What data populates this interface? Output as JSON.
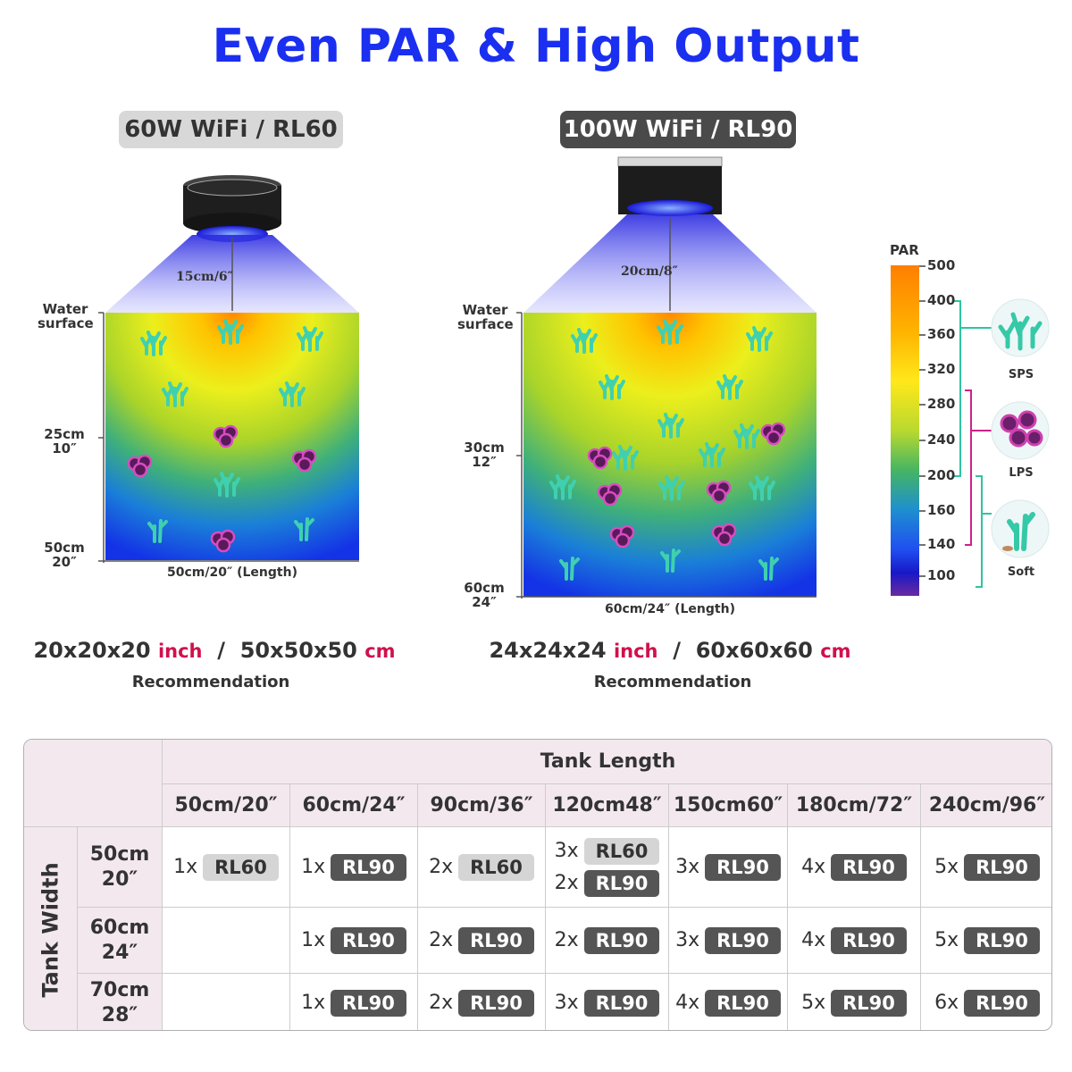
{
  "title": "Even PAR & High Output",
  "left_panel": {
    "model": "60W WiFi / RL60",
    "distance": "15cm/6″",
    "water_surface": [
      "Water",
      "surface"
    ],
    "depth_mid": [
      "25cm",
      "10″"
    ],
    "depth_bottom": [
      "50cm",
      "20″"
    ],
    "length": "50cm/20″  (Length)",
    "size_inch": "20x20x20",
    "size_cm": "50x50x50",
    "unit_inch": "inch",
    "unit_cm": "cm",
    "recommendation": "Recommendation"
  },
  "right_panel": {
    "model": "100W WiFi / RL90",
    "distance": "20cm/8″",
    "water_surface": [
      "Water",
      "surface"
    ],
    "depth_mid": [
      "30cm",
      "12″"
    ],
    "depth_bottom": [
      "60cm",
      "24″"
    ],
    "length": "60cm/24″  (Length)",
    "size_inch": "24x24x24",
    "size_cm": "60x60x60",
    "unit_inch": "inch",
    "unit_cm": "cm",
    "recommendation": "Recommendation"
  },
  "par_scale": {
    "label": "PAR",
    "ticks": [
      "500",
      "400",
      "360",
      "320",
      "280",
      "240",
      "200",
      "160",
      "140",
      "100"
    ],
    "corals": [
      "SPS",
      "LPS",
      "Soft"
    ]
  },
  "table": {
    "header": "Tank Length",
    "row_header": "Tank Width",
    "lengths": [
      "50cm/20″",
      "60cm/24″",
      "90cm/36″",
      "120cm48″",
      "150cm60″",
      "180cm/72″",
      "240cm/96″"
    ],
    "widths": [
      [
        "50cm",
        "20″"
      ],
      [
        "60cm",
        "24″"
      ],
      [
        "70cm",
        "28″"
      ]
    ],
    "rows": [
      [
        [
          [
            "1x",
            "RL60"
          ]
        ],
        [
          [
            "1x",
            "RL90"
          ]
        ],
        [
          [
            "2x",
            "RL60"
          ]
        ],
        [
          [
            "3x",
            "RL60"
          ],
          [
            "2x",
            "RL90"
          ]
        ],
        [
          [
            "3x",
            "RL90"
          ]
        ],
        [
          [
            "4x",
            "RL90"
          ]
        ],
        [
          [
            "5x",
            "RL90"
          ]
        ]
      ],
      [
        [],
        [
          [
            "1x",
            "RL90"
          ]
        ],
        [
          [
            "2x",
            "RL90"
          ]
        ],
        [
          [
            "2x",
            "RL90"
          ]
        ],
        [
          [
            "3x",
            "RL90"
          ]
        ],
        [
          [
            "4x",
            "RL90"
          ]
        ],
        [
          [
            "5x",
            "RL90"
          ]
        ]
      ],
      [
        [],
        [
          [
            "1x",
            "RL90"
          ]
        ],
        [
          [
            "2x",
            "RL90"
          ]
        ],
        [
          [
            "3x",
            "RL90"
          ]
        ],
        [
          [
            "4x",
            "RL90"
          ]
        ],
        [
          [
            "5x",
            "RL90"
          ]
        ],
        [
          [
            "6x",
            "RL90"
          ]
        ]
      ]
    ]
  },
  "colors": {
    "title_blue": "#1a2ff0",
    "unit_red": "#d0104c",
    "rl90_tag": "#555555",
    "rl60_tag": "#d5d5d5",
    "table_header_bg": "#f4e8ef"
  }
}
